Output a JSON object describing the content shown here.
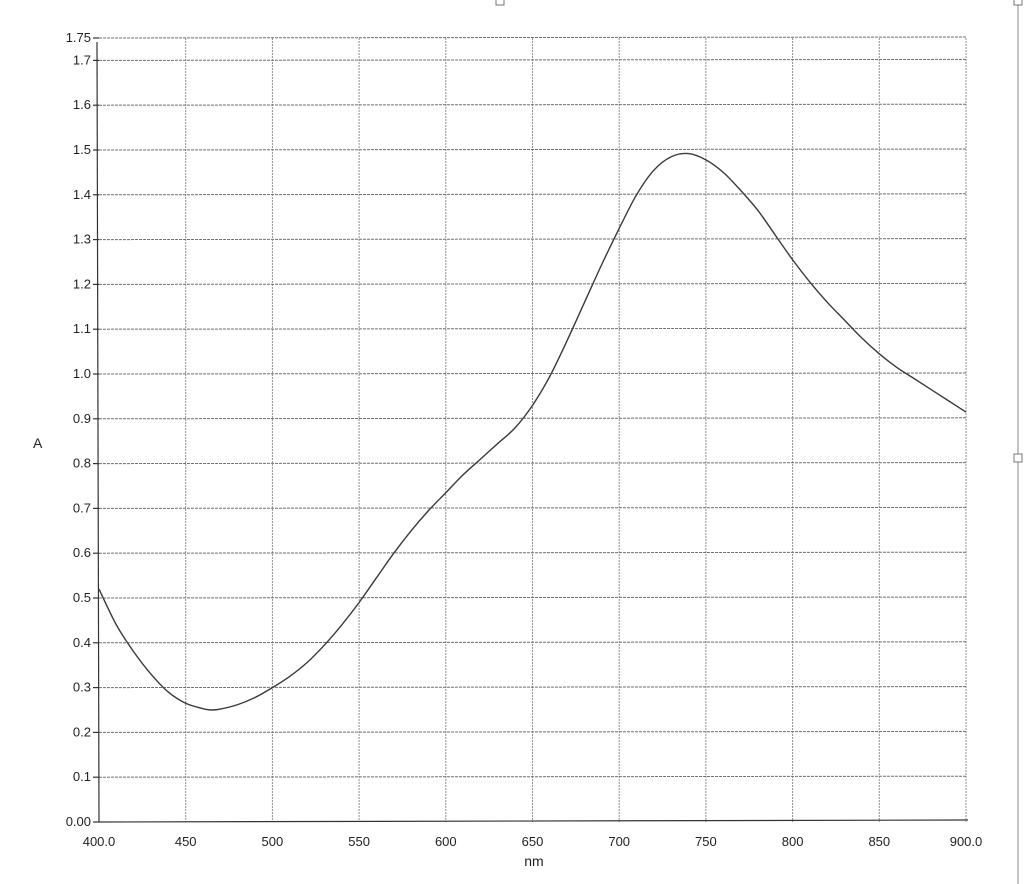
{
  "chart_data": {
    "type": "line",
    "xlabel": "nm",
    "ylabel": "A",
    "xlim": [
      400,
      900
    ],
    "ylim": [
      0,
      1.75
    ],
    "grid": true,
    "x_ticks": [
      {
        "value": 400,
        "label": "400.0"
      },
      {
        "value": 450,
        "label": "450"
      },
      {
        "value": 500,
        "label": "500"
      },
      {
        "value": 550,
        "label": "550"
      },
      {
        "value": 600,
        "label": "600"
      },
      {
        "value": 650,
        "label": "650"
      },
      {
        "value": 700,
        "label": "700"
      },
      {
        "value": 750,
        "label": "750"
      },
      {
        "value": 800,
        "label": "800"
      },
      {
        "value": 850,
        "label": "850"
      },
      {
        "value": 900,
        "label": "900.0"
      }
    ],
    "y_ticks": [
      {
        "value": 0,
        "label": "0.00"
      },
      {
        "value": 0.1,
        "label": "0.1"
      },
      {
        "value": 0.2,
        "label": "0.2"
      },
      {
        "value": 0.3,
        "label": "0.3"
      },
      {
        "value": 0.4,
        "label": "0.4"
      },
      {
        "value": 0.5,
        "label": "0.5"
      },
      {
        "value": 0.6,
        "label": "0.6"
      },
      {
        "value": 0.7,
        "label": "0.7"
      },
      {
        "value": 0.8,
        "label": "0.8"
      },
      {
        "value": 0.9,
        "label": "0.9"
      },
      {
        "value": 1.0,
        "label": "1.0"
      },
      {
        "value": 1.1,
        "label": "1.1"
      },
      {
        "value": 1.2,
        "label": "1.2"
      },
      {
        "value": 1.3,
        "label": "1.3"
      },
      {
        "value": 1.4,
        "label": "1.4"
      },
      {
        "value": 1.5,
        "label": "1.5"
      },
      {
        "value": 1.6,
        "label": "1.6"
      },
      {
        "value": 1.7,
        "label": "1.7"
      },
      {
        "value": 1.75,
        "label": "1.75"
      }
    ],
    "series": [
      {
        "x": [
          400,
          410,
          420,
          430,
          440,
          450,
          460,
          465,
          470,
          480,
          490,
          500,
          510,
          520,
          530,
          540,
          550,
          560,
          570,
          580,
          590,
          600,
          610,
          620,
          630,
          640,
          650,
          660,
          670,
          680,
          690,
          700,
          710,
          720,
          730,
          740,
          750,
          760,
          770,
          780,
          790,
          800,
          810,
          820,
          830,
          840,
          850,
          860,
          870,
          880,
          890,
          900
        ],
        "values": [
          0.52,
          0.44,
          0.38,
          0.33,
          0.29,
          0.265,
          0.253,
          0.25,
          0.252,
          0.262,
          0.278,
          0.3,
          0.325,
          0.356,
          0.395,
          0.44,
          0.49,
          0.545,
          0.6,
          0.65,
          0.695,
          0.735,
          0.775,
          0.81,
          0.845,
          0.88,
          0.93,
          0.995,
          1.075,
          1.16,
          1.245,
          1.325,
          1.4,
          1.455,
          1.485,
          1.492,
          1.478,
          1.45,
          1.41,
          1.365,
          1.31,
          1.255,
          1.205,
          1.16,
          1.12,
          1.08,
          1.045,
          1.015,
          0.99,
          0.965,
          0.94,
          0.915
        ]
      }
    ]
  }
}
